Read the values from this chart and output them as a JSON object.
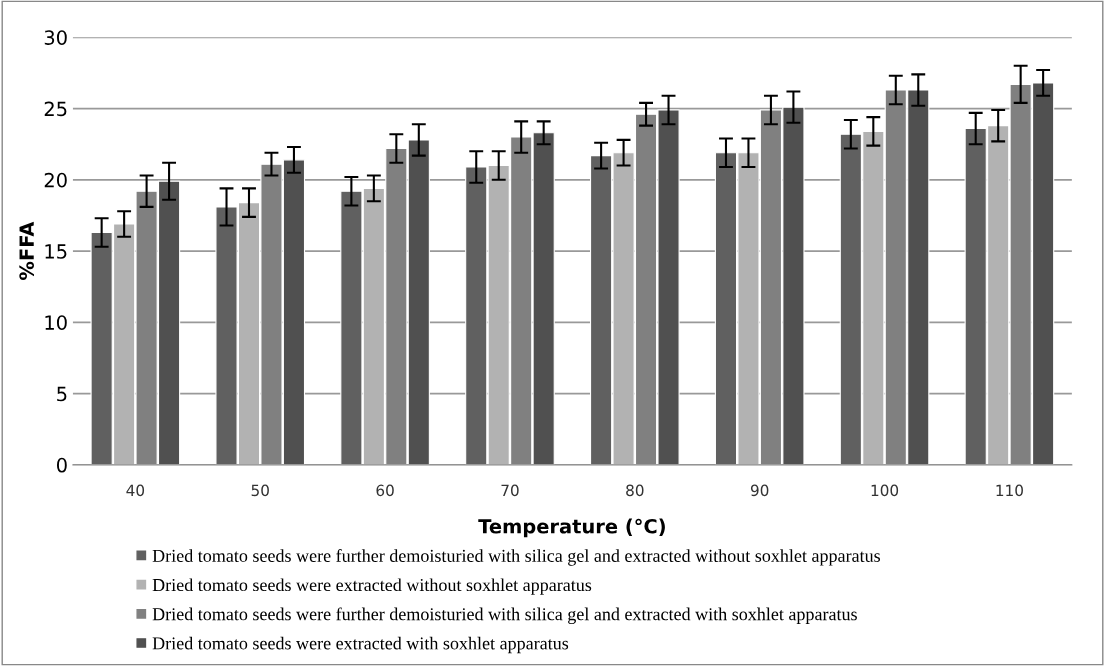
{
  "chart_data": {
    "type": "bar",
    "xlabel": "Temperature (°C)",
    "ylabel": "%FFA",
    "categories": [
      "40",
      "50",
      "60",
      "70",
      "80",
      "90",
      "100",
      "110"
    ],
    "ylim": [
      0,
      30
    ],
    "yticks": [
      0,
      5,
      10,
      15,
      20,
      25,
      30
    ],
    "grid": "y",
    "legend": "bottom",
    "series": [
      {
        "name": "Dried tomato seeds were further demoisturied with silica gel and extracted without soxhlet apparatus",
        "color": "#606060",
        "values": [
          16.3,
          18.1,
          19.2,
          20.9,
          21.7,
          21.9,
          23.2,
          23.6
        ],
        "errors": [
          1.0,
          1.3,
          1.0,
          1.1,
          0.9,
          1.0,
          1.0,
          1.1
        ]
      },
      {
        "name": "Dried tomato seeds were extracted without soxhlet apparatus",
        "color": "#b2b2b2",
        "values": [
          16.9,
          18.4,
          19.4,
          21.0,
          21.9,
          21.9,
          23.4,
          23.8
        ],
        "errors": [
          0.9,
          1.0,
          0.9,
          1.0,
          0.9,
          1.0,
          1.0,
          1.1
        ]
      },
      {
        "name": "Dried tomato seeds were further demoisturied with silica gel and extracted with soxhlet apparatus",
        "color": "#808080",
        "values": [
          19.2,
          21.1,
          22.2,
          23.0,
          24.6,
          24.9,
          26.3,
          26.7
        ],
        "errors": [
          1.1,
          0.8,
          1.0,
          1.1,
          0.8,
          1.0,
          1.0,
          1.3
        ]
      },
      {
        "name": "Dried tomato seeds were extracted with soxhlet apparatus",
        "color": "#505050",
        "values": [
          19.9,
          21.4,
          22.8,
          23.3,
          24.9,
          25.1,
          26.3,
          26.8
        ],
        "errors": [
          1.3,
          0.9,
          1.1,
          0.8,
          1.0,
          1.1,
          1.1,
          0.9
        ]
      }
    ]
  }
}
